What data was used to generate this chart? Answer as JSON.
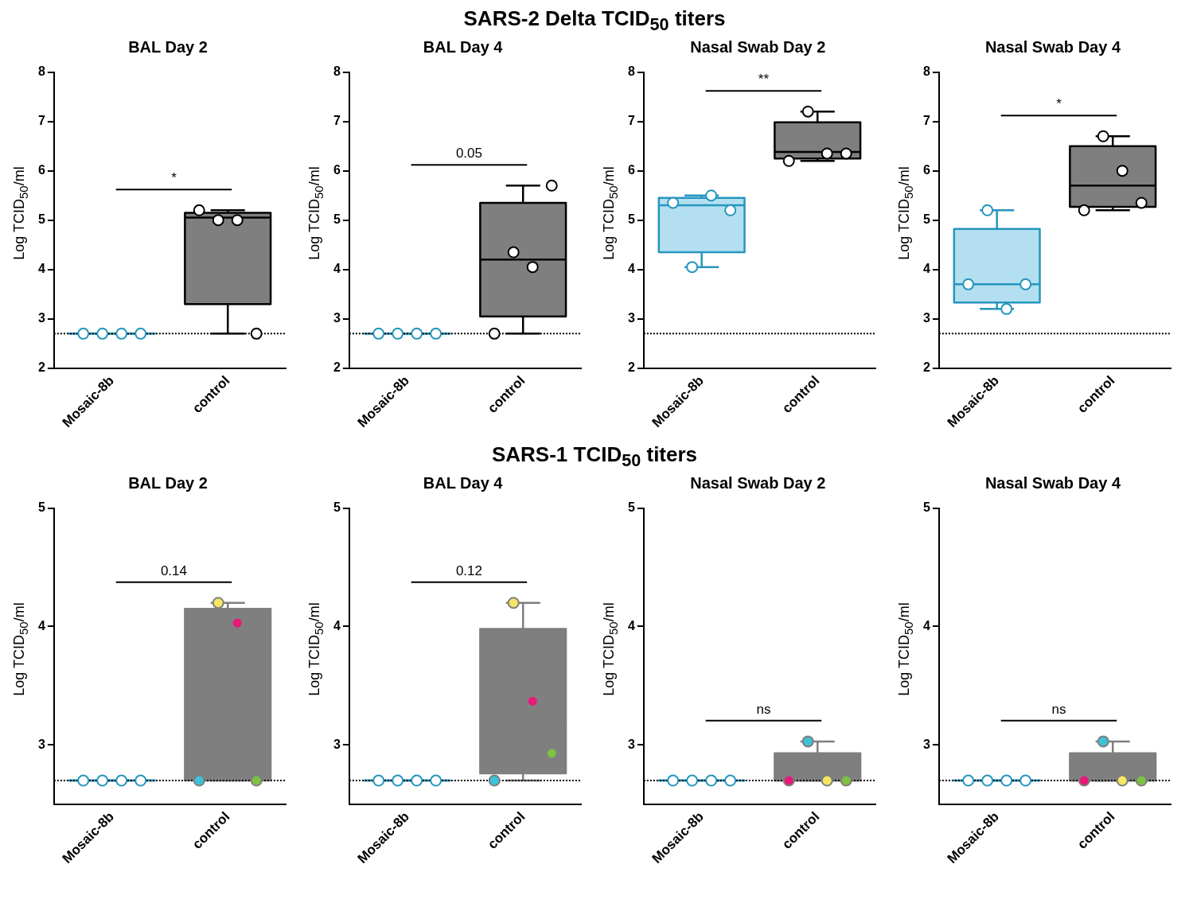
{
  "chart_data": [
    {
      "type": "box",
      "subtitle": "BAL Day 2",
      "ylabel": "Log TCID$_{50}$/ml",
      "categories": [
        "Mosaic-8b",
        "control"
      ],
      "colors": [
        "#2596be",
        "#7f7f7f"
      ],
      "boxes": [
        {
          "low": 2.7,
          "q1": 2.7,
          "median": 2.7,
          "q3": 2.7,
          "high": 2.7
        },
        {
          "low": 2.7,
          "q1": 3.3,
          "median": 5.05,
          "q3": 5.15,
          "high": 5.2
        }
      ],
      "series": [
        {
          "type": "scatter",
          "color": "#2596be",
          "x": [
            "Mosaic-8b",
            "Mosaic-8b",
            "Mosaic-8b",
            "Mosaic-8b"
          ],
          "values": [
            2.7,
            2.7,
            2.7,
            2.7
          ],
          "colors": [
            "#ffffff",
            "#ffffff",
            "#ffffff",
            "#ffffff"
          ]
        },
        {
          "type": "scatter",
          "color": "#000000",
          "x": [
            "control",
            "control",
            "control",
            "control"
          ],
          "values": [
            5.2,
            5.0,
            5.0,
            2.7
          ],
          "colors": [
            "#ffffff",
            "#ffffff",
            "#ffffff",
            "#ffffff"
          ]
        }
      ],
      "ylim": [
        2,
        8
      ],
      "yticks": [
        2,
        3,
        4,
        5,
        6,
        7,
        8
      ],
      "ref_lines": [
        {
          "axis": "y",
          "value": 2.7,
          "color": "#000000",
          "line_style": "dotted"
        }
      ],
      "annotations": [
        "*"
      ],
      "marker": "circle",
      "grid": false,
      "legend": false
    },
    {
      "type": "box",
      "title": "SARS-2 Delta TCID$_{50}$ titers",
      "subtitle": "BAL Day 4",
      "ylabel": "Log TCID$_{50}$/ml",
      "categories": [
        "Mosaic-8b",
        "control"
      ],
      "colors": [
        "#2596be",
        "#7f7f7f"
      ],
      "boxes": [
        {
          "low": 2.7,
          "q1": 2.7,
          "median": 2.7,
          "q3": 2.7,
          "high": 2.7
        },
        {
          "low": 2.7,
          "q1": 3.05,
          "median": 4.2,
          "q3": 5.35,
          "high": 5.7
        }
      ],
      "series": [
        {
          "type": "scatter",
          "color": "#2596be",
          "x": [
            "Mosaic-8b",
            "Mosaic-8b",
            "Mosaic-8b",
            "Mosaic-8b"
          ],
          "values": [
            2.7,
            2.7,
            2.7,
            2.7
          ],
          "colors": [
            "#ffffff",
            "#ffffff",
            "#ffffff",
            "#ffffff"
          ]
        },
        {
          "type": "scatter",
          "color": "#000000",
          "x": [
            "control",
            "control",
            "control",
            "control"
          ],
          "values": [
            2.7,
            4.35,
            4.05,
            5.7
          ],
          "colors": [
            "#ffffff",
            "#ffffff",
            "#ffffff",
            "#ffffff"
          ]
        }
      ],
      "ylim": [
        2,
        8
      ],
      "yticks": [
        2,
        3,
        4,
        5,
        6,
        7,
        8
      ],
      "ref_lines": [
        {
          "axis": "y",
          "value": 2.7,
          "color": "#000000",
          "line_style": "dotted"
        }
      ],
      "annotations": [
        "0.05"
      ],
      "marker": "circle",
      "grid": false,
      "legend": false
    },
    {
      "type": "box",
      "subtitle": "Nasal Swab Day 2",
      "ylabel": "Log TCID$_{50}$/ml",
      "categories": [
        "Mosaic-8b",
        "control"
      ],
      "colors": [
        "#b3dff0",
        "#7f7f7f"
      ],
      "boxes": [
        {
          "low": 4.05,
          "q1": 4.35,
          "median": 5.3,
          "q3": 5.45,
          "high": 5.5
        },
        {
          "low": 6.2,
          "q1": 6.25,
          "median": 6.38,
          "q3": 6.98,
          "high": 7.2
        }
      ],
      "series": [
        {
          "type": "scatter",
          "color": "#2596be",
          "x": [
            "Mosaic-8b",
            "Mosaic-8b",
            "Mosaic-8b",
            "Mosaic-8b"
          ],
          "values": [
            5.35,
            4.05,
            5.5,
            5.2
          ],
          "colors": [
            "#ffffff",
            "#ffffff",
            "#ffffff",
            "#ffffff"
          ]
        },
        {
          "type": "scatter",
          "color": "#000000",
          "x": [
            "control",
            "control",
            "control",
            "control"
          ],
          "values": [
            6.2,
            7.2,
            6.35,
            6.35
          ],
          "colors": [
            "#ffffff",
            "#ffffff",
            "#ffffff",
            "#ffffff"
          ]
        }
      ],
      "ylim": [
        2,
        8
      ],
      "yticks": [
        2,
        3,
        4,
        5,
        6,
        7,
        8
      ],
      "ref_lines": [
        {
          "axis": "y",
          "value": 2.7,
          "color": "#000000",
          "line_style": "dotted"
        }
      ],
      "annotations": [
        "**"
      ],
      "marker": "circle",
      "grid": false,
      "legend": false
    },
    {
      "type": "box",
      "subtitle": "Nasal Swab Day 4",
      "ylabel": "Log TCID$_{50}$/ml",
      "categories": [
        "Mosaic-8b",
        "control"
      ],
      "colors": [
        "#b3dff0",
        "#7f7f7f"
      ],
      "boxes": [
        {
          "low": 3.2,
          "q1": 3.33,
          "median": 3.7,
          "q3": 4.82,
          "high": 5.2
        },
        {
          "low": 5.2,
          "q1": 5.27,
          "median": 5.7,
          "q3": 6.5,
          "high": 6.7
        }
      ],
      "series": [
        {
          "type": "scatter",
          "color": "#2596be",
          "x": [
            "Mosaic-8b",
            "Mosaic-8b",
            "Mosaic-8b",
            "Mosaic-8b"
          ],
          "values": [
            3.7,
            5.2,
            3.2,
            3.7
          ],
          "colors": [
            "#ffffff",
            "#ffffff",
            "#ffffff",
            "#ffffff"
          ]
        },
        {
          "type": "scatter",
          "color": "#000000",
          "x": [
            "control",
            "control",
            "control",
            "control"
          ],
          "values": [
            5.2,
            6.7,
            6.0,
            5.35
          ],
          "colors": [
            "#ffffff",
            "#ffffff",
            "#ffffff",
            "#ffffff"
          ]
        }
      ],
      "ylim": [
        2,
        8
      ],
      "yticks": [
        2,
        3,
        4,
        5,
        6,
        7,
        8
      ],
      "ref_lines": [
        {
          "axis": "y",
          "value": 2.7,
          "color": "#000000",
          "line_style": "dotted"
        }
      ],
      "annotations": [
        "*"
      ],
      "marker": "circle",
      "grid": false,
      "legend": false
    },
    {
      "type": "box",
      "subtitle": "BAL Day 2",
      "ylabel": "Log TCID$_{50}$/ml",
      "categories": [
        "Mosaic-8b",
        "control"
      ],
      "colors": [
        "#2596be",
        "#7f7f7f"
      ],
      "boxes": [
        {
          "low": 2.7,
          "q1": 2.7,
          "median": 2.7,
          "q3": 2.7,
          "high": 2.7
        },
        {
          "low": 2.7,
          "q1": 2.7,
          "median": 3.36,
          "q3": 4.15,
          "high": 4.2
        }
      ],
      "series": [
        {
          "type": "scatter",
          "color": "#2596be",
          "x": [
            "Mosaic-8b",
            "Mosaic-8b",
            "Mosaic-8b",
            "Mosaic-8b"
          ],
          "values": [
            2.7,
            2.7,
            2.7,
            2.7
          ],
          "colors": [
            "#ffffff",
            "#ffffff",
            "#ffffff",
            "#ffffff"
          ]
        },
        {
          "type": "scatter",
          "color": "#7f7f7f",
          "x": [
            "control",
            "control",
            "control",
            "control"
          ],
          "values": [
            2.7,
            4.2,
            4.03,
            2.7
          ],
          "colors": [
            "#3cc3d8",
            "#f5e663",
            "#e8197a",
            "#7dc242"
          ]
        }
      ],
      "ylim": [
        2.5,
        5
      ],
      "yticks": [
        3,
        4,
        5
      ],
      "ref_lines": [
        {
          "axis": "y",
          "value": 2.7,
          "color": "#000000",
          "line_style": "dotted"
        }
      ],
      "annotations": [
        "0.14"
      ],
      "marker": "circle",
      "grid": false,
      "legend": false
    },
    {
      "type": "box",
      "title": "SARS-1 TCID$_{50}$ titers",
      "subtitle": "BAL Day 4",
      "ylabel": "Log TCID$_{50}$/ml",
      "categories": [
        "Mosaic-8b",
        "control"
      ],
      "colors": [
        "#2596be",
        "#7f7f7f"
      ],
      "boxes": [
        {
          "low": 2.7,
          "q1": 2.7,
          "median": 2.7,
          "q3": 2.7,
          "high": 2.7
        },
        {
          "low": 2.7,
          "q1": 2.76,
          "median": 3.15,
          "q3": 3.98,
          "high": 4.2
        }
      ],
      "series": [
        {
          "type": "scatter",
          "color": "#2596be",
          "x": [
            "Mosaic-8b",
            "Mosaic-8b",
            "Mosaic-8b",
            "Mosaic-8b"
          ],
          "values": [
            2.7,
            2.7,
            2.7,
            2.7
          ],
          "colors": [
            "#ffffff",
            "#ffffff",
            "#ffffff",
            "#ffffff"
          ]
        },
        {
          "type": "scatter",
          "color": "#7f7f7f",
          "x": [
            "control",
            "control",
            "control",
            "control"
          ],
          "values": [
            2.7,
            4.2,
            3.37,
            2.93
          ],
          "colors": [
            "#3cc3d8",
            "#f5e663",
            "#e8197a",
            "#7dc242"
          ]
        }
      ],
      "ylim": [
        2.5,
        5
      ],
      "yticks": [
        3,
        4,
        5
      ],
      "ref_lines": [
        {
          "axis": "y",
          "value": 2.7,
          "color": "#000000",
          "line_style": "dotted"
        }
      ],
      "annotations": [
        "0.12"
      ],
      "marker": "circle",
      "grid": false,
      "legend": false
    },
    {
      "type": "box",
      "subtitle": "Nasal Swab Day 2",
      "ylabel": "Log TCID$_{50}$/ml",
      "categories": [
        "Mosaic-8b",
        "control"
      ],
      "colors": [
        "#2596be",
        "#7f7f7f"
      ],
      "boxes": [
        {
          "low": 2.7,
          "q1": 2.7,
          "median": 2.7,
          "q3": 2.7,
          "high": 2.7
        },
        {
          "low": 2.7,
          "q1": 2.7,
          "median": 2.7,
          "q3": 2.93,
          "high": 3.03
        }
      ],
      "series": [
        {
          "type": "scatter",
          "color": "#2596be",
          "x": [
            "Mosaic-8b",
            "Mosaic-8b",
            "Mosaic-8b",
            "Mosaic-8b"
          ],
          "values": [
            2.7,
            2.7,
            2.7,
            2.7
          ],
          "colors": [
            "#ffffff",
            "#ffffff",
            "#ffffff",
            "#ffffff"
          ]
        },
        {
          "type": "scatter",
          "color": "#7f7f7f",
          "x": [
            "control",
            "control",
            "control",
            "control"
          ],
          "values": [
            2.7,
            3.03,
            2.7,
            2.7
          ],
          "colors": [
            "#e8197a",
            "#3cc3d8",
            "#f5e663",
            "#7dc242"
          ]
        }
      ],
      "ylim": [
        2.5,
        5
      ],
      "yticks": [
        3,
        4,
        5
      ],
      "ref_lines": [
        {
          "axis": "y",
          "value": 2.7,
          "color": "#000000",
          "line_style": "dotted"
        }
      ],
      "annotations": [
        "ns"
      ],
      "marker": "circle",
      "grid": false,
      "legend": false
    },
    {
      "type": "box",
      "subtitle": "Nasal Swab Day 4",
      "ylabel": "Log TCID$_{50}$/ml",
      "categories": [
        "Mosaic-8b",
        "control"
      ],
      "colors": [
        "#2596be",
        "#7f7f7f"
      ],
      "boxes": [
        {
          "low": 2.7,
          "q1": 2.7,
          "median": 2.7,
          "q3": 2.7,
          "high": 2.7
        },
        {
          "low": 2.7,
          "q1": 2.7,
          "median": 2.7,
          "q3": 2.93,
          "high": 3.03
        }
      ],
      "series": [
        {
          "type": "scatter",
          "color": "#2596be",
          "x": [
            "Mosaic-8b",
            "Mosaic-8b",
            "Mosaic-8b",
            "Mosaic-8b"
          ],
          "values": [
            2.7,
            2.7,
            2.7,
            2.7
          ],
          "colors": [
            "#ffffff",
            "#ffffff",
            "#ffffff",
            "#ffffff"
          ]
        },
        {
          "type": "scatter",
          "color": "#7f7f7f",
          "x": [
            "control",
            "control",
            "control",
            "control"
          ],
          "values": [
            2.7,
            3.03,
            2.7,
            2.7
          ],
          "colors": [
            "#e8197a",
            "#3cc3d8",
            "#f5e663",
            "#7dc242"
          ]
        }
      ],
      "ylim": [
        2.5,
        5
      ],
      "yticks": [
        3,
        4,
        5
      ],
      "ref_lines": [
        {
          "axis": "y",
          "value": 2.7,
          "color": "#000000",
          "line_style": "dotted"
        }
      ],
      "annotations": [
        "ns"
      ],
      "marker": "circle",
      "grid": false,
      "legend": false
    }
  ]
}
